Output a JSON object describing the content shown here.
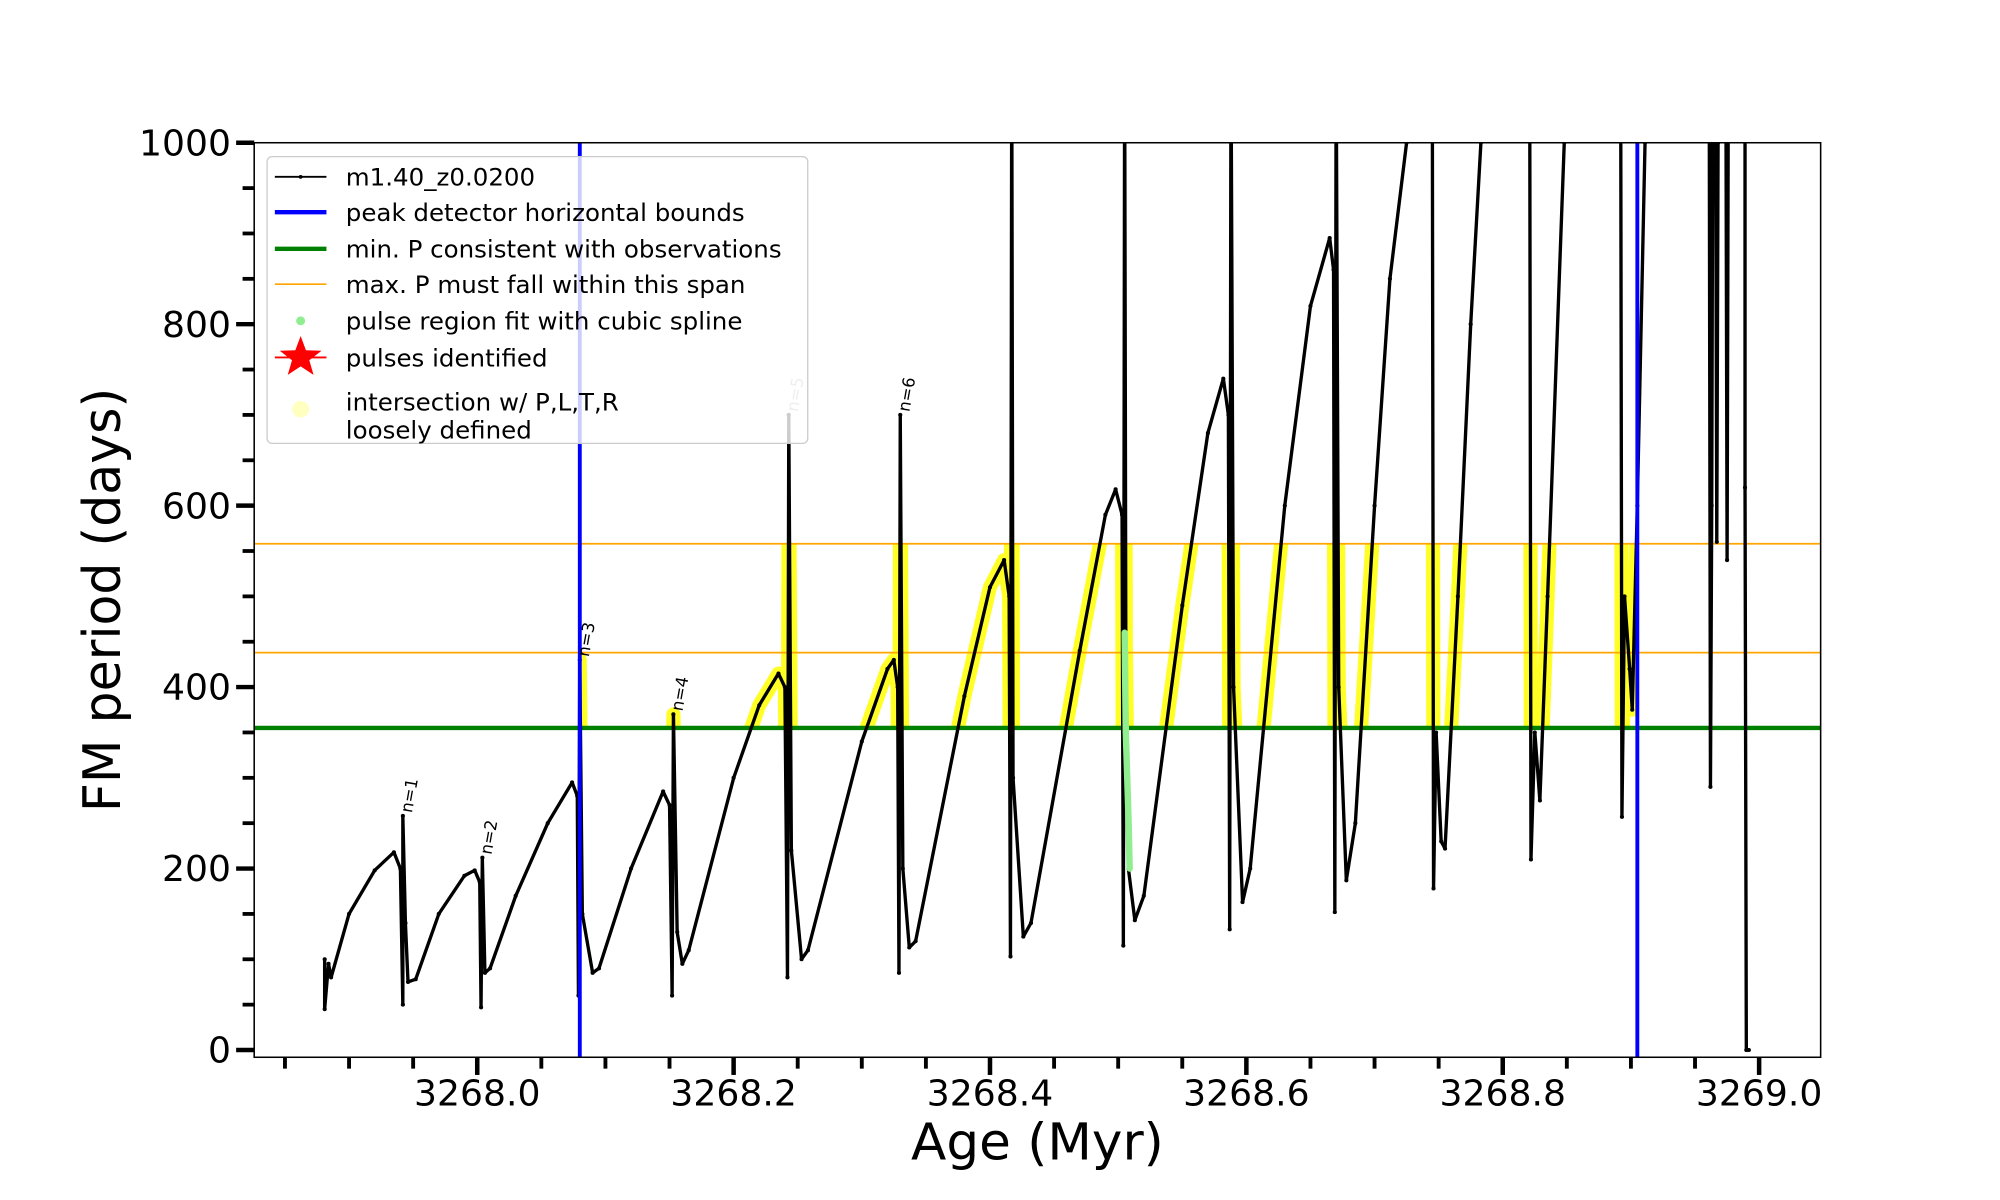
{
  "chart_data": {
    "type": "line",
    "title": "",
    "xlabel": "Age (Myr)",
    "ylabel": "FM period (days)",
    "xlim": [
      3267.826,
      3269.048
    ],
    "ylim": [
      -8,
      1000
    ],
    "grid": false,
    "legend_position": "top-left",
    "xticks": [
      3268.0,
      3268.2,
      3268.4,
      3268.6,
      3268.8,
      3269.0
    ],
    "xtick_labels": [
      "3268.0",
      "3268.2",
      "3268.4",
      "3268.6",
      "3268.8",
      "3269.0"
    ],
    "yticks": [
      0,
      200,
      400,
      600,
      800,
      1000
    ],
    "ytick_labels": [
      "0",
      "200",
      "400",
      "600",
      "800",
      "1000"
    ],
    "series": [
      {
        "name": "m1.40_z0.0200",
        "color": "#000000",
        "points": [
          [
            3267.881,
            100
          ],
          [
            3267.881,
            45
          ],
          [
            3267.884,
            95
          ],
          [
            3267.886,
            80
          ],
          [
            3267.9,
            150
          ],
          [
            3267.92,
            198
          ],
          [
            3267.935,
            218
          ],
          [
            3267.94,
            200
          ],
          [
            3267.942,
            50
          ],
          [
            3267.942,
            258
          ],
          [
            3267.944,
            140
          ],
          [
            3267.946,
            75
          ],
          [
            3267.952,
            78
          ],
          [
            3267.97,
            150
          ],
          [
            3267.99,
            192
          ],
          [
            3267.998,
            198
          ],
          [
            3268.002,
            185
          ],
          [
            3268.003,
            47
          ],
          [
            3268.004,
            212
          ],
          [
            3268.006,
            85
          ],
          [
            3268.01,
            90
          ],
          [
            3268.03,
            170
          ],
          [
            3268.055,
            250
          ],
          [
            3268.074,
            295
          ],
          [
            3268.078,
            280
          ],
          [
            3268.079,
            60
          ],
          [
            3268.08,
            430
          ],
          [
            3268.082,
            150
          ],
          [
            3268.09,
            85
          ],
          [
            3268.095,
            90
          ],
          [
            3268.12,
            200
          ],
          [
            3268.145,
            285
          ],
          [
            3268.15,
            270
          ],
          [
            3268.152,
            60
          ],
          [
            3268.153,
            370
          ],
          [
            3268.156,
            130
          ],
          [
            3268.16,
            95
          ],
          [
            3268.165,
            110
          ],
          [
            3268.2,
            300
          ],
          [
            3268.22,
            380
          ],
          [
            3268.235,
            415
          ],
          [
            3268.24,
            400
          ],
          [
            3268.242,
            80
          ],
          [
            3268.243,
            700
          ],
          [
            3268.245,
            220
          ],
          [
            3268.253,
            100
          ],
          [
            3268.258,
            110
          ],
          [
            3268.3,
            340
          ],
          [
            3268.32,
            420
          ],
          [
            3268.325,
            430
          ],
          [
            3268.328,
            400
          ],
          [
            3268.329,
            85
          ],
          [
            3268.33,
            700
          ],
          [
            3268.332,
            200
          ],
          [
            3268.337,
            113
          ],
          [
            3268.342,
            120
          ],
          [
            3268.38,
            390
          ],
          [
            3268.4,
            510
          ],
          [
            3268.411,
            540
          ],
          [
            3268.415,
            500
          ],
          [
            3268.416,
            103
          ],
          [
            3268.417,
            1100
          ],
          [
            3268.418,
            300
          ],
          [
            3268.426,
            125
          ],
          [
            3268.432,
            140
          ],
          [
            3268.47,
            440
          ],
          [
            3268.49,
            590
          ],
          [
            3268.498,
            618
          ],
          [
            3268.503,
            590
          ],
          [
            3268.504,
            115
          ],
          [
            3268.505,
            1100
          ],
          [
            3268.506,
            450
          ],
          [
            3268.508,
            200
          ],
          [
            3268.513,
            143
          ],
          [
            3268.52,
            170
          ],
          [
            3268.55,
            490
          ],
          [
            3268.57,
            680
          ],
          [
            3268.582,
            740
          ],
          [
            3268.586,
            700
          ],
          [
            3268.587,
            133
          ],
          [
            3268.588,
            1100
          ],
          [
            3268.59,
            400
          ],
          [
            3268.597,
            163
          ],
          [
            3268.603,
            200
          ],
          [
            3268.63,
            600
          ],
          [
            3268.65,
            820
          ],
          [
            3268.665,
            895
          ],
          [
            3268.668,
            860
          ],
          [
            3268.669,
            152
          ],
          [
            3268.67,
            1100
          ],
          [
            3268.672,
            400
          ],
          [
            3268.678,
            187
          ],
          [
            3268.685,
            250
          ],
          [
            3268.7,
            600
          ],
          [
            3268.712,
            850
          ],
          [
            3268.725,
            1000
          ],
          [
            3268.73,
            1100
          ],
          [
            3268.745,
            1100
          ],
          [
            3268.746,
            178
          ],
          [
            3268.748,
            350
          ],
          [
            3268.752,
            230
          ],
          [
            3268.755,
            222
          ],
          [
            3268.765,
            500
          ],
          [
            3268.775,
            800
          ],
          [
            3268.783,
            1000
          ],
          [
            3268.79,
            1100
          ],
          [
            3268.821,
            1100
          ],
          [
            3268.822,
            210
          ],
          [
            3268.825,
            350
          ],
          [
            3268.829,
            275
          ],
          [
            3268.835,
            500
          ],
          [
            3268.848,
            1000
          ],
          [
            3268.855,
            1100
          ],
          [
            3268.892,
            1100
          ],
          [
            3268.893,
            257
          ],
          [
            3268.895,
            500
          ],
          [
            3268.899,
            420
          ],
          [
            3268.901,
            375
          ],
          [
            3268.905,
            600
          ],
          [
            3268.911,
            1000
          ],
          [
            3268.915,
            1100
          ],
          [
            3268.961,
            1100
          ],
          [
            3268.962,
            290
          ],
          [
            3268.963,
            600
          ],
          [
            3268.964,
            1100
          ],
          [
            3268.966,
            1100
          ],
          [
            3268.967,
            560
          ],
          [
            3268.968,
            1000
          ],
          [
            3268.969,
            1100
          ],
          [
            3268.974,
            1100
          ],
          [
            3268.975,
            540
          ],
          [
            3268.976,
            1100
          ],
          [
            3268.989,
            1100
          ],
          [
            3268.989,
            620
          ],
          [
            3268.99,
            0
          ],
          [
            3268.992,
            0
          ]
        ]
      },
      {
        "name": "pulse region fit with cubic spline",
        "color": "#90ee90",
        "points": [
          [
            3268.505,
            460
          ],
          [
            3268.506,
            350
          ],
          [
            3268.508,
            260
          ],
          [
            3268.509,
            200
          ]
        ]
      }
    ],
    "vlines": {
      "name": "peak detector horizontal bounds",
      "color": "#0000ff",
      "x": [
        3268.08,
        3268.905
      ]
    },
    "hline_min": {
      "name": "min. P consistent with observations",
      "color": "#008000",
      "y": 355
    },
    "hlines_max": {
      "name": "max. P must fall within this span",
      "color": "#ffa500",
      "y": [
        438,
        558
      ]
    },
    "highlight": {
      "name": "intersection w/ P,L,T,R loosely defined",
      "color": "#ffff00",
      "x_range": [
        3268.079,
        3268.905
      ],
      "y_range": [
        355,
        558
      ]
    },
    "annotations": [
      {
        "text": "n=1",
        "x": 3267.945,
        "y": 258,
        "color": "#000000"
      },
      {
        "text": "n=2",
        "x": 3268.007,
        "y": 212,
        "color": "#000000"
      },
      {
        "text": "n=3",
        "x": 3268.083,
        "y": 430,
        "color": "#000000"
      },
      {
        "text": "n=4",
        "x": 3268.156,
        "y": 370,
        "color": "#000000"
      },
      {
        "text": "n=5",
        "x": 3268.246,
        "y": 700,
        "color": "#aaaaaa"
      },
      {
        "text": "n=6",
        "x": 3268.333,
        "y": 700,
        "color": "#000000"
      }
    ],
    "legend": [
      {
        "label": "m1.40_z0.0200",
        "kind": "line-marker",
        "color": "#000000"
      },
      {
        "label": "peak detector horizontal bounds",
        "kind": "thick-line",
        "color": "#0000ff"
      },
      {
        "label": "min. P consistent with observations",
        "kind": "thick-line",
        "color": "#008000"
      },
      {
        "label": "max. P must fall within this span",
        "kind": "thin-line",
        "color": "#ffa500"
      },
      {
        "label": "pulse region fit with cubic spline",
        "kind": "dot",
        "color": "#90ee90"
      },
      {
        "label": "pulses identified",
        "kind": "star",
        "color": "#ff0000"
      },
      {
        "label": "intersection w/ P,L,T,R",
        "label2": "loosely defined",
        "kind": "big-dot",
        "color": "#ffffc0"
      }
    ]
  }
}
